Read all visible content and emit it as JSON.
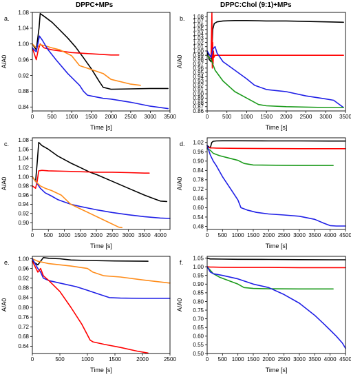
{
  "column_titles": {
    "left": "DPPC+MPs",
    "right": "DPPC:Chol (9:1)+MPs"
  },
  "colors": {
    "black": "#000000",
    "red": "#ff0000",
    "orange": "#ff8c1a",
    "blue": "#1f1fe6",
    "green": "#1a9a1a"
  },
  "chart_data": [
    {
      "id": "a",
      "letter": "a.",
      "type": "line",
      "xlabel": "Time [s]",
      "ylabel": "A/A0",
      "xlim": [
        0,
        3500
      ],
      "ylim": [
        0.83,
        1.08
      ],
      "xticks": [
        0,
        500,
        1000,
        1500,
        2000,
        2500,
        3000,
        3500
      ],
      "yticks": [
        0.84,
        0.88,
        0.92,
        0.96,
        1.0,
        1.04,
        1.08
      ],
      "ytick_decimals": 2,
      "series": [
        {
          "color": "black",
          "x": [
            0,
            100,
            170,
            200,
            300,
            500,
            700,
            900,
            1100,
            1300,
            1500,
            1700,
            1800,
            2000,
            2500,
            3000,
            3450
          ],
          "y": [
            1.0,
            0.985,
            1.04,
            1.077,
            1.07,
            1.055,
            1.035,
            1.015,
            0.992,
            0.965,
            0.937,
            0.905,
            0.89,
            0.885,
            0.886,
            0.887,
            0.887
          ]
        },
        {
          "color": "red",
          "x": [
            0,
            50,
            100,
            150,
            200,
            250,
            300,
            500,
            1000,
            1500,
            2000,
            2200
          ],
          "y": [
            0.99,
            0.975,
            0.96,
            0.985,
            1.0,
            0.995,
            0.99,
            0.985,
            0.978,
            0.975,
            0.972,
            0.972
          ]
        },
        {
          "color": "orange",
          "x": [
            0,
            100,
            200,
            300,
            500,
            700,
            1000,
            1200,
            1500,
            1800,
            2000,
            2500,
            2750
          ],
          "y": [
            1.0,
            0.99,
            0.998,
            0.996,
            0.99,
            0.985,
            0.97,
            0.945,
            0.935,
            0.925,
            0.91,
            0.898,
            0.895
          ]
        },
        {
          "color": "blue",
          "x": [
            0,
            100,
            180,
            250,
            400,
            600,
            900,
            1200,
            1300,
            1400,
            1500,
            1800,
            2000,
            2500,
            3000,
            3450
          ],
          "y": [
            0.99,
            0.98,
            1.02,
            1.01,
            0.985,
            0.96,
            0.925,
            0.895,
            0.88,
            0.87,
            0.868,
            0.862,
            0.86,
            0.852,
            0.842,
            0.836
          ]
        }
      ]
    },
    {
      "id": "b",
      "letter": "b.",
      "type": "line",
      "xlabel": "Time [s]",
      "ylabel": "A/A0",
      "xlim": [
        0,
        3500
      ],
      "ylim": [
        0.86,
        1.09
      ],
      "xticks": [
        0,
        500,
        1000,
        1500,
        2000,
        2500,
        3000,
        3500
      ],
      "yticks": [
        0.86,
        0.87,
        0.88,
        0.89,
        0.9,
        0.91,
        0.92,
        0.93,
        0.94,
        0.95,
        0.96,
        0.97,
        0.98,
        0.99,
        1.0,
        1.01,
        1.02,
        1.03,
        1.04,
        1.05,
        1.06,
        1.07,
        1.08
      ],
      "ytick_decimals": 2,
      "series": [
        {
          "color": "black",
          "x": [
            0,
            50,
            100,
            120,
            140,
            180,
            250,
            400,
            700,
            1000,
            1500,
            2000,
            2500,
            3000,
            3450
          ],
          "y": [
            1.0,
            0.98,
            0.975,
            1.0,
            1.05,
            1.064,
            1.068,
            1.07,
            1.071,
            1.071,
            1.07,
            1.07,
            1.069,
            1.068,
            1.067
          ]
        },
        {
          "color": "red",
          "x": [
            0,
            60,
            100,
            120,
            130,
            140,
            150,
            160,
            170,
            200,
            300,
            500,
            1000,
            2000,
            3000,
            3450
          ],
          "y": [
            0.99,
            0.985,
            0.99,
            1.09,
            0.96,
            1.02,
            0.97,
            1.0,
            0.985,
            0.99,
            0.99,
            0.99,
            0.99,
            0.99,
            0.99,
            0.99
          ]
        },
        {
          "color": "blue",
          "x": [
            0,
            100,
            150,
            200,
            250,
            400,
            700,
            1000,
            1200,
            1500,
            1800,
            2000,
            2500,
            3000,
            3200,
            3450
          ],
          "y": [
            1.0,
            0.985,
            1.005,
            1.01,
            0.995,
            0.975,
            0.955,
            0.935,
            0.92,
            0.91,
            0.907,
            0.905,
            0.895,
            0.888,
            0.885,
            0.868
          ]
        },
        {
          "color": "green",
          "x": [
            0,
            100,
            200,
            400,
            700,
            1000,
            1300,
            1500,
            2000,
            2500,
            3000,
            3450
          ],
          "y": [
            0.99,
            0.98,
            0.955,
            0.93,
            0.905,
            0.89,
            0.875,
            0.872,
            0.87,
            0.869,
            0.868,
            0.868
          ]
        }
      ]
    },
    {
      "id": "c",
      "letter": "c.",
      "type": "line",
      "xlabel": "Time [s]",
      "ylabel": "A/A0",
      "xlim": [
        0,
        4300
      ],
      "ylim": [
        0.885,
        1.085
      ],
      "xticks": [
        0,
        500,
        1000,
        1500,
        2000,
        2500,
        3000,
        3500,
        4000
      ],
      "yticks": [
        0.9,
        0.92,
        0.94,
        0.96,
        0.98,
        1.0,
        1.02,
        1.04,
        1.06,
        1.08
      ],
      "ytick_decimals": 2,
      "series": [
        {
          "color": "black",
          "x": [
            0,
            100,
            150,
            200,
            300,
            500,
            800,
            1200,
            1500,
            1800,
            2000,
            2500,
            3000,
            3500,
            3800,
            4000,
            4200
          ],
          "y": [
            1.0,
            0.99,
            1.03,
            1.075,
            1.068,
            1.06,
            1.045,
            1.03,
            1.02,
            1.01,
            1.005,
            0.99,
            0.975,
            0.96,
            0.952,
            0.947,
            0.946
          ]
        },
        {
          "color": "red",
          "x": [
            0,
            100,
            150,
            200,
            300,
            500,
            1000,
            1500,
            2000,
            2500,
            3000,
            3500,
            3650
          ],
          "y": [
            0.98,
            0.975,
            0.99,
            1.013,
            1.014,
            1.013,
            1.012,
            1.011,
            1.01,
            1.01,
            1.009,
            1.008,
            1.008
          ]
        },
        {
          "color": "blue",
          "x": [
            0,
            100,
            250,
            400,
            600,
            800,
            1000,
            1200,
            1500,
            2000,
            2500,
            3000,
            3500,
            4000,
            4300
          ],
          "y": [
            1.0,
            0.99,
            0.975,
            0.965,
            0.958,
            0.95,
            0.945,
            0.94,
            0.935,
            0.928,
            0.922,
            0.917,
            0.913,
            0.91,
            0.909
          ]
        },
        {
          "color": "orange",
          "x": [
            0,
            100,
            250,
            400,
            600,
            900,
            1200,
            1500,
            1800,
            2100,
            2400,
            2700,
            2800
          ],
          "y": [
            1.0,
            0.99,
            0.98,
            0.975,
            0.97,
            0.96,
            0.94,
            0.93,
            0.92,
            0.91,
            0.9,
            0.89,
            0.889
          ]
        }
      ]
    },
    {
      "id": "d",
      "letter": "d.",
      "type": "line",
      "xlabel": "Time [s]",
      "ylabel": "A/A0",
      "xlim": [
        0,
        4500
      ],
      "ylim": [
        0.46,
        1.05
      ],
      "xticks": [
        0,
        500,
        1000,
        1500,
        2000,
        2500,
        3000,
        3500,
        4000,
        4500
      ],
      "yticks": [
        0.48,
        0.54,
        0.6,
        0.66,
        0.72,
        0.78,
        0.84,
        0.9,
        0.96,
        1.02
      ],
      "ytick_decimals": 2,
      "series": [
        {
          "color": "black",
          "x": [
            0,
            100,
            150,
            200,
            300,
            500,
            1000,
            2000,
            3000,
            4000,
            4500
          ],
          "y": [
            1.0,
            0.985,
            1.02,
            1.028,
            1.03,
            1.031,
            1.031,
            1.03,
            1.03,
            1.029,
            1.029
          ]
        },
        {
          "color": "red",
          "x": [
            0,
            100,
            200,
            300,
            500,
            1000,
            2000,
            3000,
            4000,
            4500
          ],
          "y": [
            0.99,
            0.985,
            0.985,
            0.984,
            0.983,
            0.982,
            0.981,
            0.98,
            0.98,
            0.98
          ]
        },
        {
          "color": "green",
          "x": [
            0,
            100,
            200,
            400,
            700,
            1000,
            1200,
            1500,
            2000,
            2500,
            3000,
            3500,
            4100
          ],
          "y": [
            0.98,
            0.97,
            0.95,
            0.935,
            0.92,
            0.905,
            0.885,
            0.875,
            0.874,
            0.873,
            0.872,
            0.872,
            0.872
          ]
        },
        {
          "color": "blue",
          "x": [
            0,
            100,
            200,
            300,
            500,
            800,
            1000,
            1100,
            1300,
            1600,
            2000,
            2500,
            3000,
            3500,
            3800,
            4000,
            4200,
            4500
          ],
          "y": [
            1.0,
            0.94,
            0.9,
            0.87,
            0.8,
            0.71,
            0.65,
            0.6,
            0.585,
            0.57,
            0.56,
            0.553,
            0.545,
            0.525,
            0.5,
            0.485,
            0.482,
            0.482
          ]
        }
      ]
    },
    {
      "id": "e",
      "letter": "e.",
      "type": "line",
      "xlabel": "Time [s]",
      "ylabel": "A/A0",
      "xlim": [
        0,
        2500
      ],
      "ylim": [
        0.61,
        1.01
      ],
      "xticks": [
        0,
        500,
        1000,
        1500,
        2000,
        2500
      ],
      "yticks": [
        0.64,
        0.68,
        0.72,
        0.76,
        0.8,
        0.84,
        0.88,
        0.92,
        0.96,
        1.0
      ],
      "ytick_decimals": 2,
      "series": [
        {
          "color": "black",
          "x": [
            0,
            100,
            150,
            200,
            300,
            500,
            700,
            1000,
            1500,
            2100
          ],
          "y": [
            0.99,
            0.975,
            0.99,
            1.005,
            1.002,
            1.0,
            0.995,
            0.993,
            0.991,
            0.99
          ]
        },
        {
          "color": "orange",
          "x": [
            0,
            100,
            200,
            300,
            500,
            700,
            1000,
            1100,
            1300,
            1600,
            2000,
            2500
          ],
          "y": [
            1.0,
            0.99,
            0.985,
            0.98,
            0.975,
            0.97,
            0.96,
            0.945,
            0.93,
            0.925,
            0.913,
            0.9
          ]
        },
        {
          "color": "blue",
          "x": [
            0,
            100,
            150,
            200,
            300,
            500,
            800,
            1000,
            1200,
            1400,
            1600,
            2000,
            2500
          ],
          "y": [
            1.0,
            0.96,
            0.945,
            0.92,
            0.91,
            0.9,
            0.885,
            0.87,
            0.855,
            0.84,
            0.838,
            0.837,
            0.837
          ]
        },
        {
          "color": "red",
          "x": [
            0,
            100,
            150,
            200,
            300,
            500,
            700,
            900,
            1050,
            1100,
            1300,
            1600,
            1900,
            2100
          ],
          "y": [
            0.99,
            0.945,
            0.96,
            0.93,
            0.91,
            0.865,
            0.8,
            0.73,
            0.665,
            0.658,
            0.648,
            0.635,
            0.62,
            0.612
          ]
        }
      ]
    },
    {
      "id": "f",
      "letter": "f.",
      "type": "line",
      "xlabel": "Time [s]",
      "ylabel": "A/A0",
      "xlim": [
        0,
        4500
      ],
      "ylim": [
        0.5,
        1.06
      ],
      "xticks": [
        0,
        500,
        1000,
        1500,
        2000,
        2500,
        3000,
        3500,
        4000,
        4500
      ],
      "yticks": [
        0.5,
        0.55,
        0.6,
        0.65,
        0.7,
        0.75,
        0.8,
        0.85,
        0.9,
        0.95,
        1.0,
        1.05
      ],
      "ytick_decimals": 2,
      "series": [
        {
          "color": "black",
          "x": [
            0,
            100,
            200,
            500,
            1000,
            2000,
            3000,
            4000,
            4500
          ],
          "y": [
            1.05,
            1.045,
            1.045,
            1.044,
            1.043,
            1.042,
            1.041,
            1.04,
            1.04
          ]
        },
        {
          "color": "red",
          "x": [
            0,
            100,
            200,
            500,
            1000,
            2000,
            3000,
            4000,
            4500
          ],
          "y": [
            1.0,
            0.998,
            0.998,
            0.997,
            0.996,
            0.996,
            0.995,
            0.995,
            0.995
          ]
        },
        {
          "color": "green",
          "x": [
            0,
            100,
            200,
            400,
            700,
            1000,
            1200,
            1500,
            2000,
            3000,
            4100
          ],
          "y": [
            1.0,
            0.98,
            0.96,
            0.94,
            0.92,
            0.9,
            0.88,
            0.875,
            0.873,
            0.872,
            0.872
          ]
        },
        {
          "color": "blue",
          "x": [
            0,
            100,
            200,
            500,
            1000,
            1500,
            2000,
            2500,
            3000,
            3500,
            3800,
            4000,
            4200,
            4400,
            4500
          ],
          "y": [
            1.0,
            0.97,
            0.96,
            0.95,
            0.93,
            0.9,
            0.88,
            0.84,
            0.79,
            0.72,
            0.67,
            0.635,
            0.6,
            0.56,
            0.53
          ]
        }
      ]
    }
  ]
}
